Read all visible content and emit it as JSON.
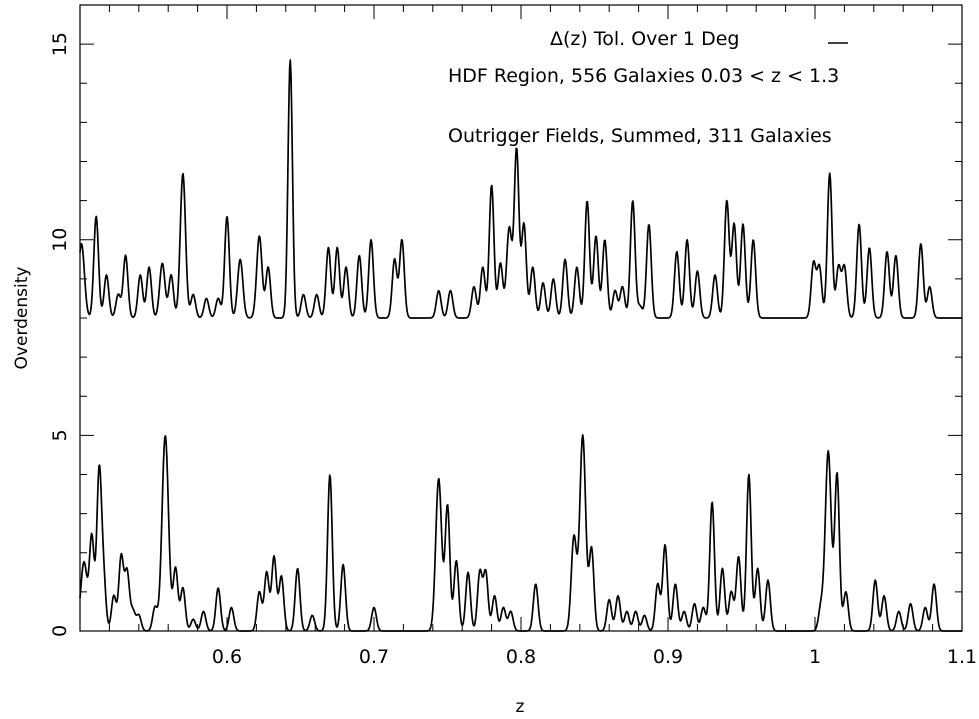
{
  "chart_data": {
    "type": "line",
    "xlabel": "z",
    "ylabel": "Overdensity",
    "xlim": [
      0.5,
      1.1
    ],
    "ylim": [
      0,
      16
    ],
    "x_ticks": [
      0.6,
      0.7,
      0.8,
      0.9,
      1.0,
      1.1
    ],
    "x_tick_labels": [
      "0.6",
      "0.7",
      "0.8",
      "0.9",
      "1",
      "1.1"
    ],
    "y_ticks": [
      0,
      5,
      10,
      15
    ],
    "y_tick_labels": [
      "0",
      "5",
      "10",
      "15"
    ],
    "grid": false,
    "annotations": {
      "line1": "Δ(z) Tol. Over 1 Deg",
      "line2": "HDF Region, 556 Galaxies 0.03 < z < 1.3",
      "line3": "Outrigger Fields, Summed, 311 Galaxies"
    },
    "series": [
      {
        "baseline": 8,
        "peaks": [
          [
            0.501,
            1.9,
            0.002
          ],
          [
            0.511,
            2.6,
            0.0016
          ],
          [
            0.518,
            1.1,
            0.0016
          ],
          [
            0.526,
            0.6,
            0.0016
          ],
          [
            0.531,
            1.6,
            0.0016
          ],
          [
            0.541,
            1.1,
            0.0016
          ],
          [
            0.547,
            1.3,
            0.0016
          ],
          [
            0.556,
            1.4,
            0.0018
          ],
          [
            0.562,
            1.1,
            0.0016
          ],
          [
            0.57,
            3.7,
            0.0018
          ],
          [
            0.577,
            0.6,
            0.0016
          ],
          [
            0.586,
            0.5,
            0.0016
          ],
          [
            0.594,
            0.5,
            0.0016
          ],
          [
            0.6,
            2.6,
            0.0016
          ],
          [
            0.609,
            1.5,
            0.0018
          ],
          [
            0.622,
            2.1,
            0.0018
          ],
          [
            0.628,
            1.3,
            0.0016
          ],
          [
            0.643,
            6.6,
            0.0015
          ],
          [
            0.652,
            0.6,
            0.0016
          ],
          [
            0.661,
            0.6,
            0.0016
          ],
          [
            0.669,
            1.8,
            0.0016
          ],
          [
            0.675,
            1.8,
            0.0016
          ],
          [
            0.681,
            1.3,
            0.0016
          ],
          [
            0.69,
            1.6,
            0.0016
          ],
          [
            0.698,
            2.0,
            0.0016
          ],
          [
            0.714,
            1.5,
            0.0016
          ],
          [
            0.719,
            2.0,
            0.0016
          ],
          [
            0.744,
            0.7,
            0.0016
          ],
          [
            0.752,
            0.7,
            0.0016
          ],
          [
            0.768,
            0.8,
            0.0016
          ],
          [
            0.774,
            1.3,
            0.0016
          ],
          [
            0.78,
            3.4,
            0.0016
          ],
          [
            0.786,
            1.4,
            0.0016
          ],
          [
            0.792,
            2.3,
            0.0018
          ],
          [
            0.797,
            4.3,
            0.0016
          ],
          [
            0.802,
            2.4,
            0.0016
          ],
          [
            0.808,
            1.3,
            0.0016
          ],
          [
            0.815,
            0.9,
            0.0016
          ],
          [
            0.822,
            1.0,
            0.0016
          ],
          [
            0.83,
            1.5,
            0.0016
          ],
          [
            0.838,
            1.3,
            0.0016
          ],
          [
            0.845,
            3.0,
            0.0016
          ],
          [
            0.851,
            2.1,
            0.0016
          ],
          [
            0.857,
            2.0,
            0.0016
          ],
          [
            0.864,
            0.7,
            0.0016
          ],
          [
            0.869,
            0.8,
            0.0016
          ],
          [
            0.876,
            3.0,
            0.0016
          ],
          [
            0.881,
            0.3,
            0.0016
          ],
          [
            0.887,
            2.4,
            0.0016
          ],
          [
            0.906,
            1.7,
            0.0016
          ],
          [
            0.913,
            2.0,
            0.0016
          ],
          [
            0.92,
            1.2,
            0.0016
          ],
          [
            0.932,
            1.1,
            0.0016
          ],
          [
            0.94,
            3.0,
            0.0016
          ],
          [
            0.945,
            2.4,
            0.0016
          ],
          [
            0.951,
            2.4,
            0.0016
          ],
          [
            0.958,
            2.0,
            0.0016
          ],
          [
            0.999,
            1.4,
            0.0016
          ],
          [
            1.003,
            1.3,
            0.0016
          ],
          [
            1.01,
            3.7,
            0.0016
          ],
          [
            1.016,
            1.3,
            0.0016
          ],
          [
            1.02,
            1.3,
            0.0016
          ],
          [
            1.03,
            2.4,
            0.0016
          ],
          [
            1.037,
            1.8,
            0.0016
          ],
          [
            1.049,
            1.7,
            0.0016
          ],
          [
            1.055,
            1.6,
            0.0016
          ],
          [
            1.072,
            1.9,
            0.0016
          ],
          [
            1.078,
            0.8,
            0.0016
          ]
        ]
      },
      {
        "baseline": 0,
        "peaks": [
          [
            0.501,
            0.4,
            0.002
          ],
          [
            0.503,
            1.5,
            0.002
          ],
          [
            0.508,
            2.4,
            0.0016
          ],
          [
            0.513,
            4.0,
            0.0016
          ],
          [
            0.516,
            1.3,
            0.0016
          ],
          [
            0.523,
            0.9,
            0.0016
          ],
          [
            0.528,
            1.9,
            0.0016
          ],
          [
            0.532,
            1.5,
            0.0016
          ],
          [
            0.536,
            0.5,
            0.0016
          ],
          [
            0.54,
            0.4,
            0.0016
          ],
          [
            0.551,
            0.6,
            0.0016
          ],
          [
            0.558,
            5.0,
            0.0022
          ],
          [
            0.565,
            1.6,
            0.0016
          ],
          [
            0.57,
            1.1,
            0.0016
          ],
          [
            0.577,
            0.3,
            0.0016
          ],
          [
            0.584,
            0.5,
            0.0016
          ],
          [
            0.594,
            1.1,
            0.0016
          ],
          [
            0.603,
            0.6,
            0.0016
          ],
          [
            0.622,
            1.0,
            0.0016
          ],
          [
            0.627,
            1.5,
            0.0016
          ],
          [
            0.632,
            1.9,
            0.0016
          ],
          [
            0.637,
            1.4,
            0.0016
          ],
          [
            0.648,
            1.6,
            0.0016
          ],
          [
            0.658,
            0.4,
            0.0016
          ],
          [
            0.67,
            4.0,
            0.0016
          ],
          [
            0.679,
            1.7,
            0.0016
          ],
          [
            0.7,
            0.6,
            0.0016
          ],
          [
            0.744,
            3.9,
            0.002
          ],
          [
            0.75,
            3.2,
            0.0016
          ],
          [
            0.756,
            1.8,
            0.0016
          ],
          [
            0.764,
            1.5,
            0.0016
          ],
          [
            0.772,
            1.5,
            0.0016
          ],
          [
            0.776,
            1.5,
            0.0016
          ],
          [
            0.782,
            0.9,
            0.0016
          ],
          [
            0.788,
            0.6,
            0.0016
          ],
          [
            0.793,
            0.5,
            0.0016
          ],
          [
            0.81,
            1.2,
            0.0016
          ],
          [
            0.836,
            2.4,
            0.0018
          ],
          [
            0.842,
            5.0,
            0.002
          ],
          [
            0.848,
            2.1,
            0.0016
          ],
          [
            0.86,
            0.8,
            0.0016
          ],
          [
            0.866,
            0.9,
            0.0016
          ],
          [
            0.872,
            0.5,
            0.0016
          ],
          [
            0.878,
            0.5,
            0.0016
          ],
          [
            0.884,
            0.4,
            0.0016
          ],
          [
            0.893,
            1.2,
            0.0016
          ],
          [
            0.898,
            2.2,
            0.0016
          ],
          [
            0.905,
            1.2,
            0.0016
          ],
          [
            0.911,
            0.5,
            0.0016
          ],
          [
            0.918,
            0.7,
            0.0016
          ],
          [
            0.924,
            0.6,
            0.0016
          ],
          [
            0.93,
            3.3,
            0.0016
          ],
          [
            0.937,
            1.6,
            0.0016
          ],
          [
            0.943,
            1.0,
            0.0016
          ],
          [
            0.948,
            1.9,
            0.0016
          ],
          [
            0.955,
            4.0,
            0.0016
          ],
          [
            0.961,
            1.6,
            0.0016
          ],
          [
            0.968,
            1.3,
            0.0016
          ],
          [
            1.004,
            0.6,
            0.0016
          ],
          [
            1.009,
            4.6,
            0.002
          ],
          [
            1.015,
            4.0,
            0.0016
          ],
          [
            1.021,
            1.0,
            0.0016
          ],
          [
            1.041,
            1.3,
            0.0016
          ],
          [
            1.047,
            0.9,
            0.0016
          ],
          [
            1.057,
            0.5,
            0.0016
          ],
          [
            1.065,
            0.7,
            0.0016
          ],
          [
            1.075,
            0.6,
            0.0016
          ],
          [
            1.081,
            1.2,
            0.0016
          ]
        ]
      }
    ]
  }
}
